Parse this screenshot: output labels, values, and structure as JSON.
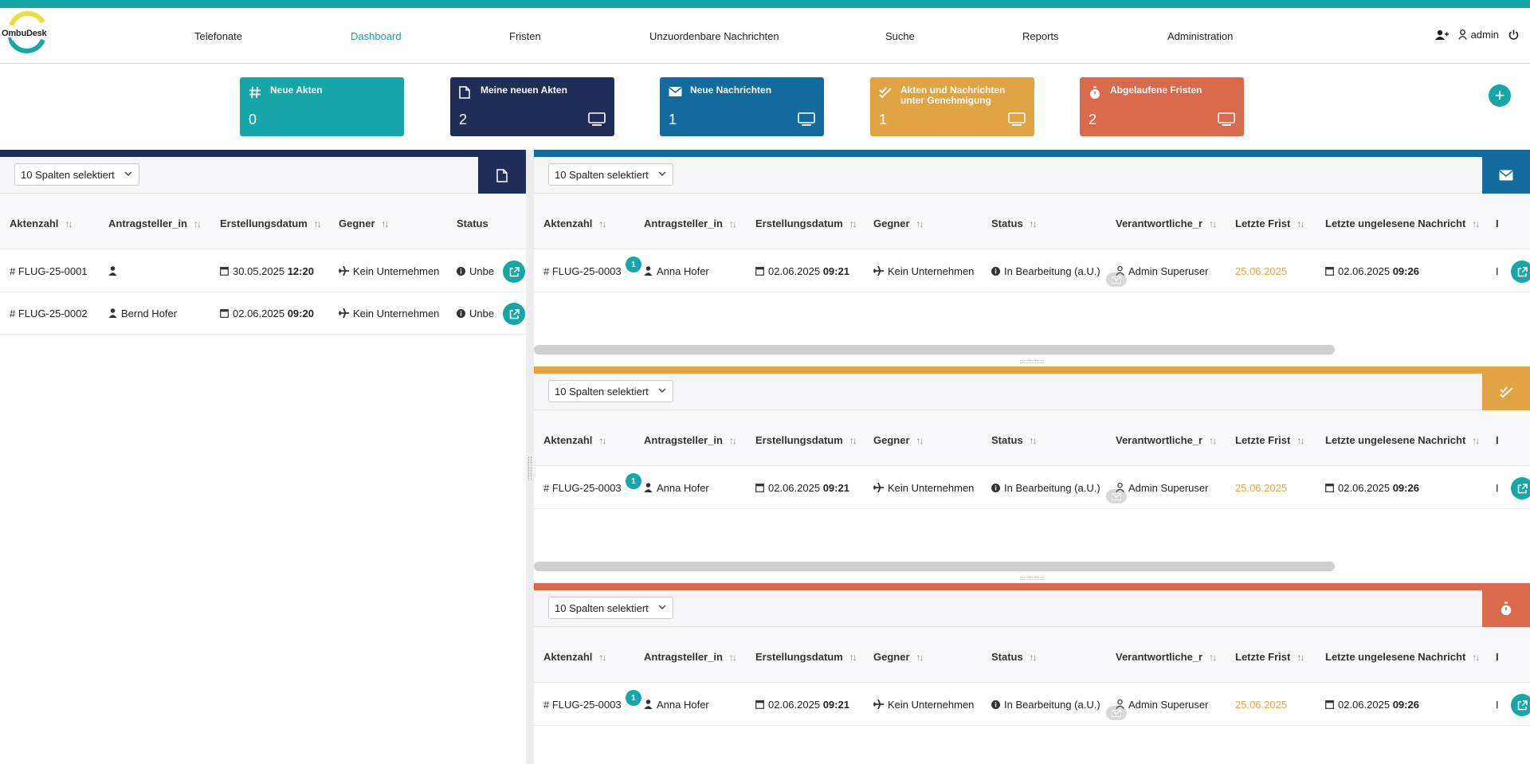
{
  "brand": {
    "logo_text": "OmbuDesk"
  },
  "nav": {
    "items": [
      {
        "label": "Telefonate"
      },
      {
        "label": "Dashboard",
        "active": true
      },
      {
        "label": "Fristen"
      },
      {
        "label": "Unzuordenbare Nachrichten"
      },
      {
        "label": "Suche"
      },
      {
        "label": "Reports"
      },
      {
        "label": "Administration"
      }
    ]
  },
  "user": {
    "name": "admin",
    "icons": [
      "add-user-icon",
      "user-icon",
      "power-icon"
    ]
  },
  "cards": [
    {
      "title": "Neue Akten",
      "count": "0",
      "icon": "hash-icon",
      "color": "#16a6a8"
    },
    {
      "title": "Meine neuen Akten",
      "count": "2",
      "icon": "file-icon",
      "color": "#1e2e57"
    },
    {
      "title": "Neue Nachrichten",
      "count": "1",
      "icon": "envelope-icon",
      "color": "#136a9d"
    },
    {
      "title": "Akten und Nachrichten unter Genehmigung",
      "count": "1",
      "icon": "double-check-icon",
      "color": "#e1a444"
    },
    {
      "title": "Abgelaufene Fristen",
      "count": "2",
      "icon": "stopwatch-icon",
      "color": "#d96b4c"
    }
  ],
  "column_select_label": "10 Spalten selektiert",
  "left_table": {
    "headers": [
      "Aktenzahl",
      "Antragsteller_in",
      "Erstellungsdatum",
      "Gegner",
      "Status"
    ],
    "rows": [
      {
        "aktenzahl": "FLUG-25-0001",
        "antragsteller": "",
        "datum": "30.05.2025",
        "zeit": "12:20",
        "gegner": "Kein Unternehmen",
        "status": "Unbe"
      },
      {
        "aktenzahl": "FLUG-25-0002",
        "antragsteller": "Bernd Hofer",
        "datum": "02.06.2025",
        "zeit": "09:20",
        "gegner": "Kein Unternehmen",
        "status": "Unbe"
      }
    ]
  },
  "right_table": {
    "headers": [
      "Aktenzahl",
      "Antragsteller_in",
      "Erstellungsdatum",
      "Gegner",
      "Status",
      "Verantwortliche_r",
      "Letzte Frist",
      "Letzte ungelesene Nachricht",
      "I"
    ],
    "row": {
      "aktenzahl": "FLUG-25-0003",
      "badge": "1",
      "antragsteller": "Anna Hofer",
      "datum": "02.06.2025",
      "zeit": "09:21",
      "gegner": "Kein Unternehmen",
      "status": "In Bearbeitung (a.U.)",
      "verantwortlich": "Admin Superuser",
      "frist": "25.06.2025",
      "nachricht_datum": "02.06.2025",
      "nachricht_zeit": "09:26",
      "trunc": "I"
    }
  },
  "panels": [
    {
      "name": "messages",
      "color": "#136a9d",
      "icon": "envelope-icon"
    },
    {
      "name": "approval",
      "color": "#e1a444",
      "icon": "double-check-icon"
    },
    {
      "name": "deadlines",
      "color": "#d96b4c",
      "icon": "stopwatch-icon"
    }
  ]
}
